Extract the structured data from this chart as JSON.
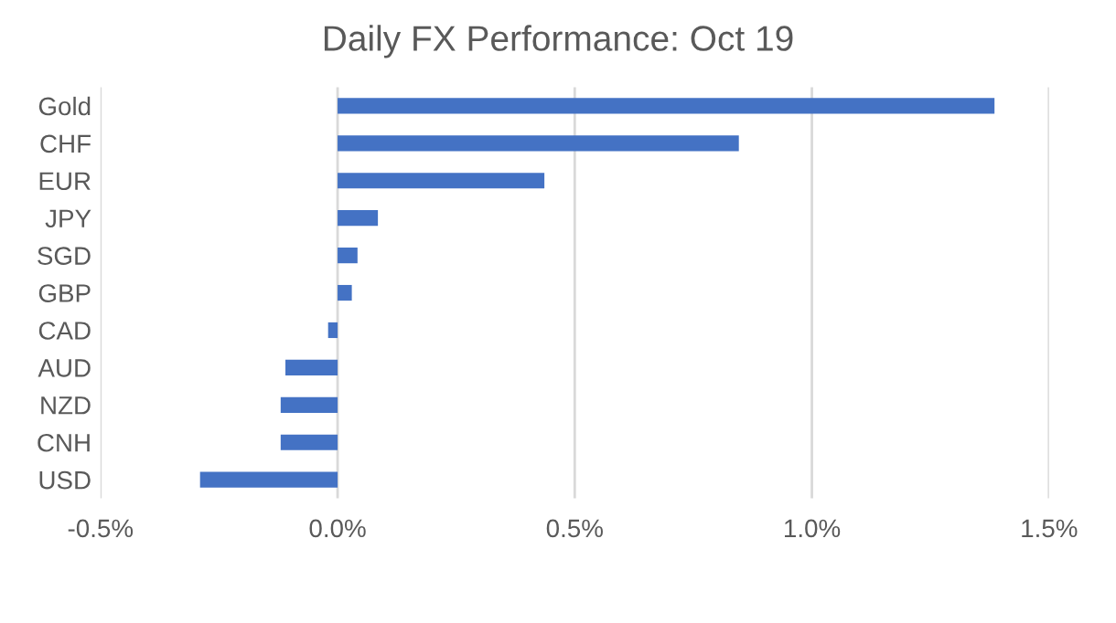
{
  "chart_data": {
    "type": "bar",
    "orientation": "horizontal",
    "title": "Daily FX Performance: Oct 19",
    "categories": [
      "Gold",
      "CHF",
      "EUR",
      "JPY",
      "SGD",
      "GBP",
      "CAD",
      "AUD",
      "NZD",
      "CNH",
      "USD"
    ],
    "values": [
      1.385,
      0.846,
      0.436,
      0.085,
      0.042,
      0.03,
      -0.02,
      -0.11,
      -0.12,
      -0.12,
      -0.29
    ],
    "color": "#4472c4",
    "xlim": [
      -0.5,
      1.5
    ],
    "xticks": [
      {
        "value": -0.5,
        "label": "-0.5%"
      },
      {
        "value": 0,
        "label": "0.0%"
      },
      {
        "value": 0.5,
        "label": "0.5%"
      },
      {
        "value": 1.0,
        "label": "1.0%"
      },
      {
        "value": 1.5,
        "label": "1.5%"
      }
    ],
    "grid": "x",
    "legend": false
  }
}
